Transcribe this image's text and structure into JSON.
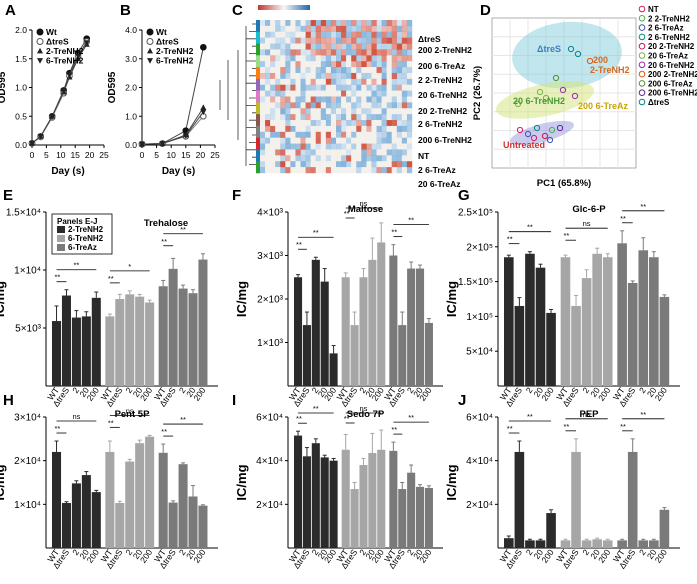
{
  "panel_labels": [
    "A",
    "B",
    "C",
    "D",
    "E",
    "F",
    "G",
    "H",
    "I",
    "J"
  ],
  "growth_legend": [
    "Wt",
    "ΔtreS",
    "2-TreNH2",
    "6-TreNH2"
  ],
  "pca_legend": [
    "NT",
    "2 2-TreNH2",
    "2 6-TreAz",
    "2 6-TreNH2",
    "20 2-TreNH2",
    "20 6-TreAz",
    "20 6-TreNH2",
    "200 2-TreNH2",
    "200 6-TreAz",
    "200 6-TreNH2",
    "ΔtreS"
  ],
  "pca_legend_colors": [
    "#d81b60",
    "#4caf50",
    "#3f51b5",
    "#00897b",
    "#c2185b",
    "#7cb342",
    "#9c27b0",
    "#e65100",
    "#558b2f",
    "#6a1b9a",
    "#00838f"
  ],
  "heatmap_labels": [
    "ΔtreS",
    "200 2-TreNH2",
    "200 6-TreAz",
    "2 2-TreNH2",
    "20 6-TreNH2",
    "20 2-TreNH2",
    "2 6-TreNH2",
    "200 6-TreNH2",
    "NT",
    "2 6-TreAz",
    "20 6-TreAz"
  ],
  "panels_legend": {
    "title": "Panels E-J",
    "items": [
      "2-TreNH2",
      "6-TreNH2",
      "6-TreAz"
    ],
    "colors": [
      "#2b2b2b",
      "#a6a6a6",
      "#7a7a7a"
    ]
  },
  "bar_tick_labels": [
    "WT",
    "ΔtreS",
    "2",
    "20",
    "200"
  ],
  "sig_labels": {
    "ns": "ns",
    "star": "*",
    "double": "**"
  },
  "chart_data": [
    {
      "panel": "A",
      "type": "line",
      "xlabel": "Day (s)",
      "ylabel": "OD595",
      "xlim": [
        0,
        25
      ],
      "ylim": [
        0,
        2.0
      ],
      "xticks": [
        "0",
        "5",
        "10",
        "15",
        "20",
        "25"
      ],
      "yticks": [
        "0.0",
        "0.5",
        "1.0",
        "1.5",
        "2.0"
      ],
      "x": [
        0,
        3,
        7,
        11,
        13,
        16,
        19
      ],
      "series": [
        {
          "name": "Wt",
          "values": [
            0.03,
            0.15,
            0.5,
            0.95,
            1.25,
            1.6,
            1.85
          ]
        },
        {
          "name": "ΔtreS",
          "values": [
            0.03,
            0.14,
            0.48,
            0.9,
            1.2,
            1.55,
            1.8
          ]
        },
        {
          "name": "2-TreNH2",
          "values": [
            0.03,
            0.15,
            0.5,
            0.92,
            1.18,
            1.5,
            1.75
          ]
        },
        {
          "name": "6-TreNH2",
          "values": [
            0.03,
            0.15,
            0.49,
            0.95,
            1.22,
            1.55,
            1.78
          ]
        }
      ]
    },
    {
      "panel": "B",
      "type": "line",
      "xlabel": "Day (s)",
      "ylabel": "OD595",
      "xlim": [
        0,
        25
      ],
      "ylim": [
        0,
        4.0
      ],
      "xticks": [
        "0",
        "5",
        "10",
        "15",
        "20",
        "25"
      ],
      "yticks": [
        "0.0",
        "1.0",
        "2.0",
        "3.0",
        "4.0"
      ],
      "x": [
        0,
        7,
        15,
        21
      ],
      "series": [
        {
          "name": "Wt",
          "values": [
            0.03,
            0.05,
            0.5,
            3.4
          ]
        },
        {
          "name": "ΔtreS",
          "values": [
            0.03,
            0.05,
            0.3,
            1.0
          ]
        },
        {
          "name": "2-TreNH2",
          "values": [
            0.03,
            0.05,
            0.35,
            1.3
          ]
        },
        {
          "name": "6-TreNH2",
          "values": [
            0.03,
            0.05,
            0.32,
            1.15
          ]
        }
      ]
    },
    {
      "panel": "D",
      "type": "scatter",
      "xlabel": "PC1 (65.8%)",
      "ylabel": "PC2 (26.7%)",
      "annotations": [
        "ΔtreS",
        "200 2-TreNH2",
        "200 6-TreAz",
        "20 6-TreNH2",
        "Untreated"
      ]
    },
    {
      "panel": "E",
      "type": "bar",
      "title": "Trehalose",
      "ylabel": "IC/mg",
      "ylim": [
        0,
        15000
      ],
      "yticks": [
        "5×10³",
        "1×10⁴",
        "1.5×10⁴"
      ],
      "ytick_values": [
        5000,
        10000,
        15000
      ],
      "groups": [
        {
          "name": "2-TreNH2",
          "values": [
            5600,
            7800,
            5900,
            6000,
            7600
          ],
          "errors": [
            1300,
            500,
            600,
            400,
            500
          ]
        },
        {
          "name": "6-TreNH2",
          "values": [
            6000,
            7500,
            7900,
            7700,
            7200
          ],
          "errors": [
            200,
            400,
            300,
            200,
            200
          ]
        },
        {
          "name": "6-TreAz",
          "values": [
            8600,
            10100,
            8400,
            8000,
            10900
          ],
          "errors": [
            500,
            900,
            300,
            300,
            500
          ]
        }
      ],
      "sig": [
        [
          "**",
          "**"
        ],
        [
          "**",
          "*"
        ],
        [
          "**",
          "**"
        ]
      ]
    },
    {
      "panel": "F",
      "type": "bar",
      "title": "Maltose",
      "ylabel": "IC/mg",
      "ylim": [
        0,
        4000
      ],
      "yticks": [
        "1×10³",
        "2×10³",
        "3×10³",
        "4×10³"
      ],
      "ytick_values": [
        1000,
        2000,
        3000,
        4000
      ],
      "groups": [
        {
          "name": "2-TreNH2",
          "values": [
            2500,
            1400,
            2900,
            2400,
            750
          ],
          "errors": [
            60,
            300,
            60,
            300,
            180
          ]
        },
        {
          "name": "6-TreNH2",
          "values": [
            2500,
            1400,
            2500,
            2900,
            3300
          ],
          "errors": [
            100,
            300,
            200,
            500,
            450
          ]
        },
        {
          "name": "6-TreAz",
          "values": [
            3000,
            1400,
            2700,
            2700,
            1450
          ],
          "errors": [
            250,
            300,
            150,
            80,
            100
          ]
        }
      ],
      "sig": [
        [
          "**",
          "**"
        ],
        [
          "**",
          "ns"
        ],
        [
          "**",
          "**"
        ]
      ]
    },
    {
      "panel": "G",
      "type": "bar",
      "title": "Glc-6-P",
      "ylabel": "IC/mg",
      "ylim": [
        0,
        250000
      ],
      "yticks": [
        "5×10⁴",
        "1×10⁵",
        "1.5×10⁵",
        "2×10⁵",
        "2.5×10⁵"
      ],
      "ytick_values": [
        50000,
        100000,
        150000,
        200000,
        250000
      ],
      "groups": [
        {
          "name": "2-TreNH2",
          "values": [
            185000,
            115000,
            190000,
            170000,
            105000
          ],
          "errors": [
            3000,
            12000,
            3000,
            5000,
            5000
          ]
        },
        {
          "name": "6-TreNH2",
          "values": [
            185000,
            115000,
            155000,
            190000,
            185000
          ],
          "errors": [
            3000,
            15000,
            12000,
            8000,
            5000
          ]
        },
        {
          "name": "6-TreAz",
          "values": [
            205000,
            148000,
            195000,
            185000,
            128000
          ],
          "errors": [
            18000,
            3000,
            18000,
            8000,
            3000
          ]
        }
      ],
      "sig": [
        [
          "**",
          "**"
        ],
        [
          "**",
          "ns"
        ],
        [
          "**",
          "**"
        ]
      ]
    },
    {
      "panel": "H",
      "type": "bar",
      "title": "Pent 5P",
      "ylabel": "IC/mg",
      "ylim": [
        0,
        30000
      ],
      "yticks": [
        "1×10⁴",
        "2×10⁴",
        "3×10⁴"
      ],
      "ytick_values": [
        10000,
        20000,
        30000
      ],
      "groups": [
        {
          "name": "2-TreNH2",
          "values": [
            22000,
            10300,
            14800,
            16700,
            12800
          ],
          "errors": [
            2500,
            300,
            600,
            800,
            400
          ]
        },
        {
          "name": "6-TreNH2",
          "values": [
            22000,
            10300,
            19800,
            24000,
            25500
          ],
          "errors": [
            2500,
            400,
            500,
            700,
            300
          ]
        },
        {
          "name": "6-TreAz",
          "values": [
            21800,
            10400,
            19200,
            11800,
            9700
          ],
          "errors": [
            2000,
            400,
            300,
            2500,
            200
          ]
        }
      ],
      "sig": [
        [
          "**",
          "ns"
        ],
        [
          "**",
          "ns"
        ],
        [
          "**",
          "**"
        ]
      ]
    },
    {
      "panel": "I",
      "type": "bar",
      "title": "Sedo 7P",
      "ylabel": "IC/mg",
      "ylim": [
        0,
        60000
      ],
      "yticks": [
        "2×10⁴",
        "4×10⁴",
        "6×10⁴"
      ],
      "ytick_values": [
        20000,
        40000,
        60000
      ],
      "groups": [
        {
          "name": "2-TreNH2",
          "values": [
            51500,
            42000,
            48000,
            41500,
            40000
          ],
          "errors": [
            2000,
            4000,
            2000,
            1000,
            1000
          ]
        },
        {
          "name": "6-TreNH2",
          "values": [
            45000,
            27000,
            38000,
            43500,
            45000
          ],
          "errors": [
            7000,
            3000,
            3000,
            9000,
            9000
          ]
        },
        {
          "name": "6-TreAz",
          "values": [
            44500,
            27000,
            34500,
            28000,
            27500
          ],
          "errors": [
            4000,
            3000,
            3500,
            1000,
            1000
          ]
        }
      ],
      "sig": [
        [
          "**",
          "**"
        ],
        [
          "**",
          "ns"
        ],
        [
          "**",
          "**"
        ]
      ]
    },
    {
      "panel": "J",
      "type": "bar",
      "title": "PEP",
      "ylabel": "IC/mg",
      "ylim": [
        0,
        60000
      ],
      "yticks": [
        "2×10⁴",
        "4×10⁴",
        "6×10⁴"
      ],
      "ytick_values": [
        20000,
        40000,
        60000
      ],
      "groups": [
        {
          "name": "2-TreNH2",
          "values": [
            4500,
            44000,
            3500,
            3500,
            16000
          ],
          "errors": [
            1000,
            5000,
            500,
            500,
            1500
          ]
        },
        {
          "name": "6-TreNH2",
          "values": [
            3500,
            44000,
            3500,
            4000,
            3500
          ],
          "errors": [
            500,
            6000,
            500,
            500,
            500
          ]
        },
        {
          "name": "6-TreAz",
          "values": [
            3500,
            44000,
            3500,
            3500,
            17500
          ],
          "errors": [
            500,
            6000,
            500,
            500,
            1000
          ]
        }
      ],
      "sig": [
        [
          "**",
          "**"
        ],
        [
          "**",
          "ns"
        ],
        [
          "**",
          "**"
        ]
      ]
    }
  ]
}
